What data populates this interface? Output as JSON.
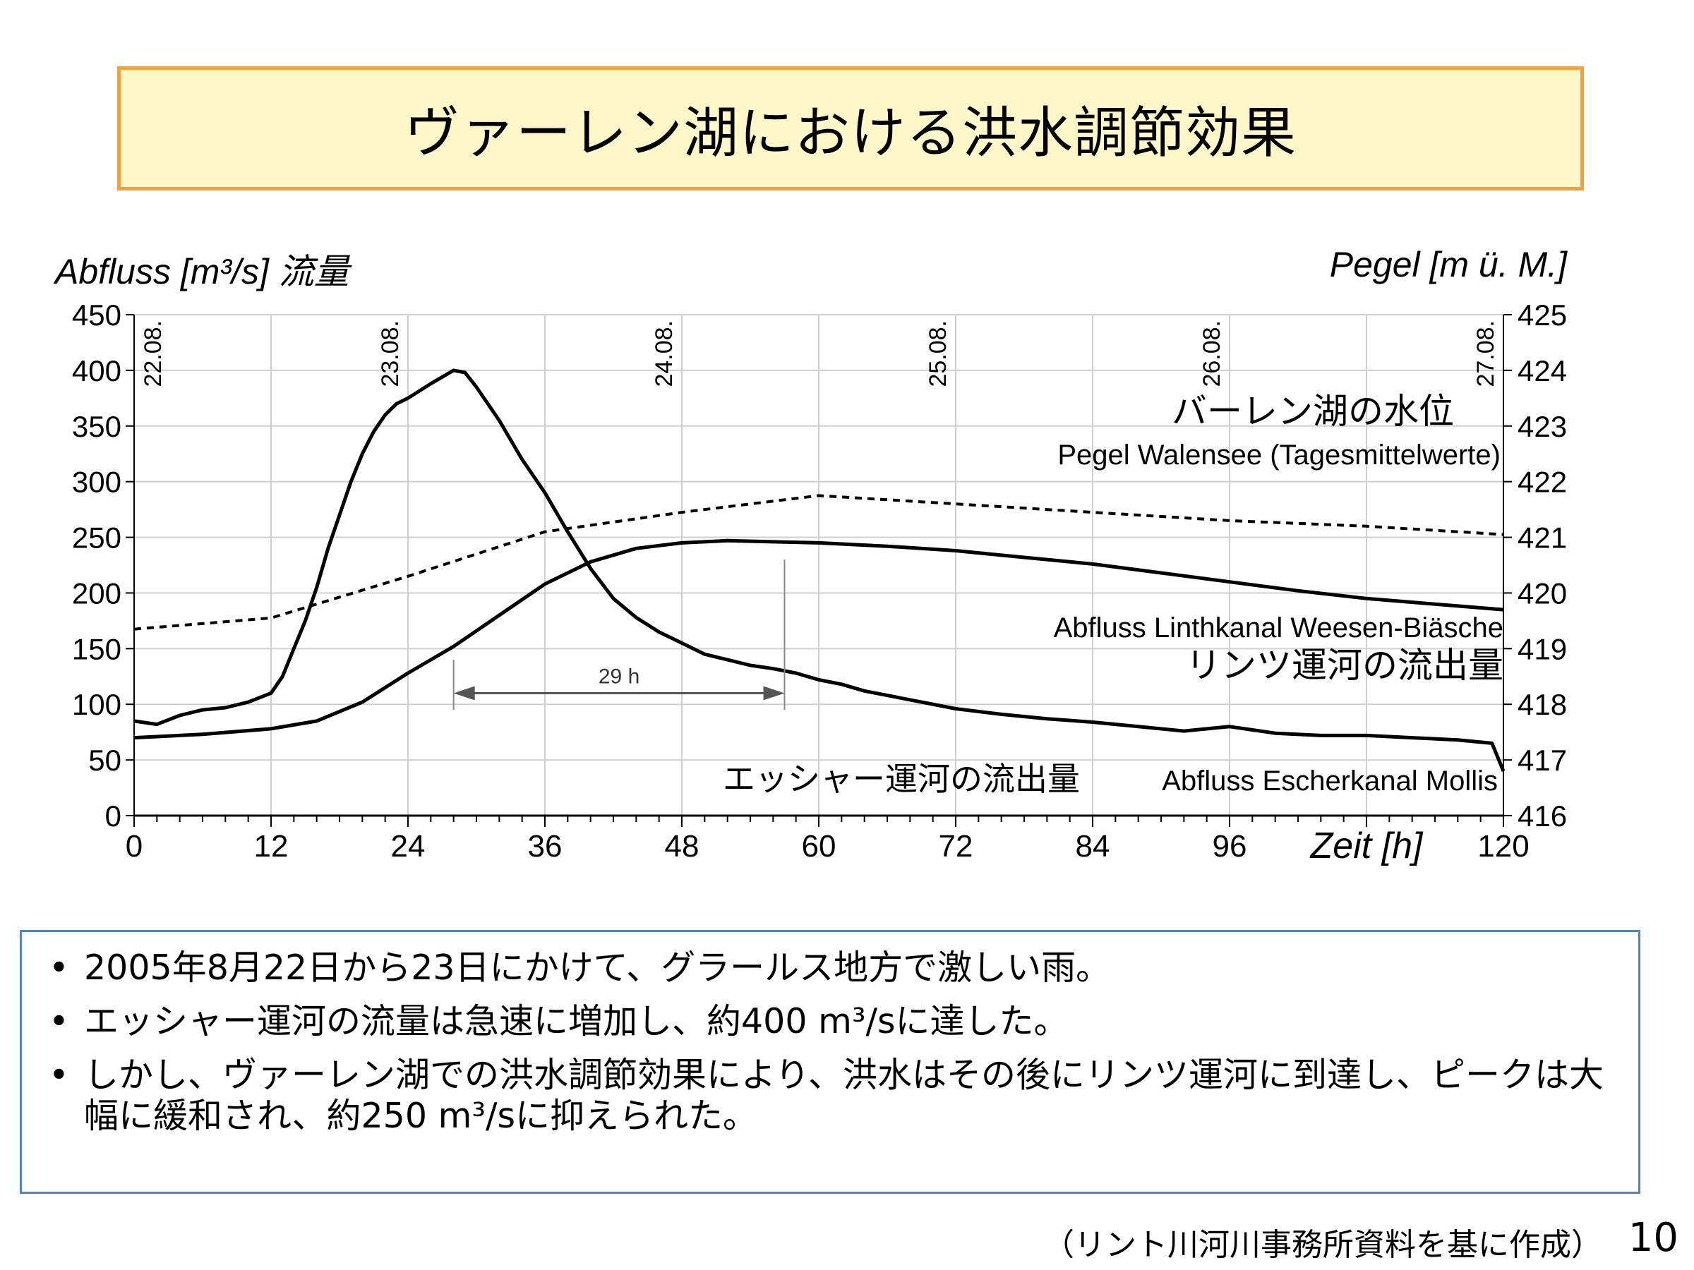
{
  "title": "ヴァーレン湖における洪水調節効果",
  "bullets": [
    "2005年8月22日から23日にかけて、グラールス地方で激しい雨。",
    "エッシャー運河の流量は急速に増加し、約400 m³/sに達した。",
    "しかし、ヴァーレン湖での洪水調節効果により、洪水はその後にリンツ運河に到達し、ピークは大幅に緩和され、約250 m³/sに抑えられた。"
  ],
  "source": "（リント川河川事務所資料を基に作成）",
  "page_number": "10",
  "chart_data": {
    "type": "line",
    "ylabel_left": "Abfluss [m³/s] 流量",
    "ylabel_right": "Pegel [m ü. M.]",
    "xlabel": "Zeit [h]",
    "xlim": [
      0,
      120
    ],
    "ylim_left": [
      0,
      450
    ],
    "ylim_right": [
      416,
      425
    ],
    "x_ticks": [
      0,
      12,
      24,
      36,
      48,
      60,
      72,
      84,
      96,
      120
    ],
    "y_ticks_left": [
      0,
      50,
      100,
      150,
      200,
      250,
      300,
      350,
      400,
      450
    ],
    "y_ticks_right": [
      416,
      417,
      418,
      419,
      420,
      421,
      422,
      423,
      424,
      425
    ],
    "grid": true,
    "date_labels": [
      {
        "x": 0,
        "label": "22.08."
      },
      {
        "x": 24,
        "label": "23.08."
      },
      {
        "x": 48,
        "label": "24.08."
      },
      {
        "x": 72,
        "label": "25.08."
      },
      {
        "x": 96,
        "label": "26.08."
      },
      {
        "x": 120,
        "label": "27.08."
      }
    ],
    "annotation": {
      "label": "29 h",
      "x_start": 28,
      "x_end": 57,
      "y": 110
    },
    "series": [
      {
        "name_jp": "エッシャー運河の流出量",
        "name": "Abfluss Escherkanal Mollis",
        "style": "solid",
        "axis": "left",
        "x": [
          0,
          2,
          4,
          6,
          8,
          10,
          12,
          13,
          14,
          15,
          16,
          17,
          18,
          19,
          20,
          21,
          22,
          23,
          24,
          26,
          28,
          29,
          30,
          32,
          34,
          36,
          38,
          40,
          42,
          44,
          46,
          48,
          50,
          52,
          54,
          56,
          58,
          60,
          62,
          64,
          66,
          68,
          70,
          72,
          76,
          80,
          84,
          88,
          92,
          96,
          100,
          104,
          108,
          112,
          116,
          119,
          120
        ],
        "y": [
          85,
          82,
          90,
          95,
          97,
          102,
          110,
          125,
          150,
          175,
          205,
          240,
          270,
          300,
          325,
          345,
          360,
          370,
          375,
          388,
          400,
          398,
          385,
          355,
          320,
          290,
          255,
          222,
          195,
          178,
          165,
          155,
          145,
          140,
          135,
          132,
          128,
          122,
          118,
          112,
          108,
          104,
          100,
          96,
          91,
          87,
          84,
          80,
          76,
          80,
          74,
          72,
          72,
          70,
          68,
          65,
          40
        ]
      },
      {
        "name_jp": "リンツ運河の流出量",
        "name": "Abfluss Linthkanal Weesen-Biäsche",
        "style": "solid",
        "axis": "left",
        "x": [
          0,
          6,
          12,
          16,
          20,
          24,
          28,
          32,
          36,
          40,
          44,
          48,
          52,
          56,
          60,
          66,
          72,
          78,
          84,
          90,
          96,
          102,
          108,
          114,
          120
        ],
        "y": [
          70,
          73,
          78,
          85,
          102,
          128,
          152,
          180,
          208,
          228,
          240,
          245,
          247,
          246,
          245,
          242,
          238,
          232,
          226,
          218,
          210,
          202,
          195,
          190,
          185
        ]
      },
      {
        "name_jp": "バーレン湖の水位",
        "name": "Pegel Walensee (Tagesmittelwerte)",
        "style": "dashed",
        "axis": "right",
        "x": [
          0,
          12,
          24,
          36,
          48,
          60,
          72,
          84,
          96,
          108,
          120
        ],
        "y": [
          419.35,
          419.55,
          420.3,
          421.1,
          421.45,
          421.75,
          421.6,
          421.45,
          421.3,
          421.2,
          421.05
        ]
      }
    ]
  }
}
